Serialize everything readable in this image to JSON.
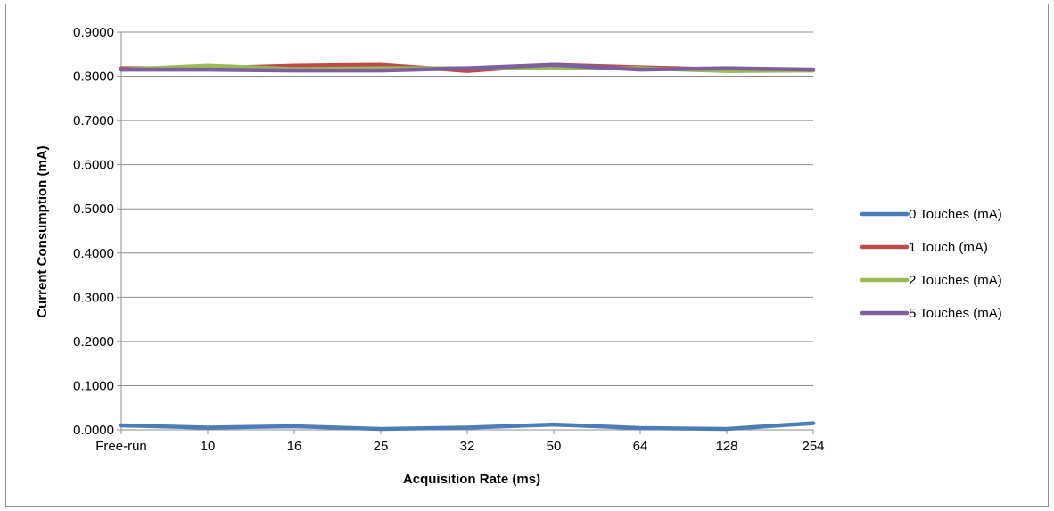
{
  "chart_data": {
    "type": "line",
    "xlabel": "Acquisition Rate (ms)",
    "ylabel": "Current Consumption (mA)",
    "categories": [
      "Free-run",
      "10",
      "16",
      "25",
      "32",
      "50",
      "64",
      "128",
      "254"
    ],
    "ylim": [
      0,
      0.9
    ],
    "yticks": [
      "0.0000",
      "0.1000",
      "0.2000",
      "0.3000",
      "0.4000",
      "0.5000",
      "0.6000",
      "0.7000",
      "0.8000",
      "0.9000"
    ],
    "grid": true,
    "legend_position": "right",
    "series": [
      {
        "name": "0 Touches (mA)",
        "color": "#4a7ebb",
        "values": [
          0.01,
          0.005,
          0.008,
          0.002,
          0.005,
          0.012,
          0.004,
          0.002,
          0.015
        ]
      },
      {
        "name": "1 Touch (mA)",
        "color": "#be4b48",
        "values": [
          0.818,
          0.818,
          0.824,
          0.826,
          0.812,
          0.826,
          0.82,
          0.815,
          0.815
        ]
      },
      {
        "name": "2 Touches (mA)",
        "color": "#98b954",
        "values": [
          0.815,
          0.824,
          0.816,
          0.818,
          0.818,
          0.818,
          0.818,
          0.812,
          0.813
        ]
      },
      {
        "name": "5 Touches (mA)",
        "color": "#7d5fa0",
        "values": [
          0.815,
          0.815,
          0.813,
          0.813,
          0.818,
          0.826,
          0.815,
          0.818,
          0.815
        ]
      }
    ]
  }
}
